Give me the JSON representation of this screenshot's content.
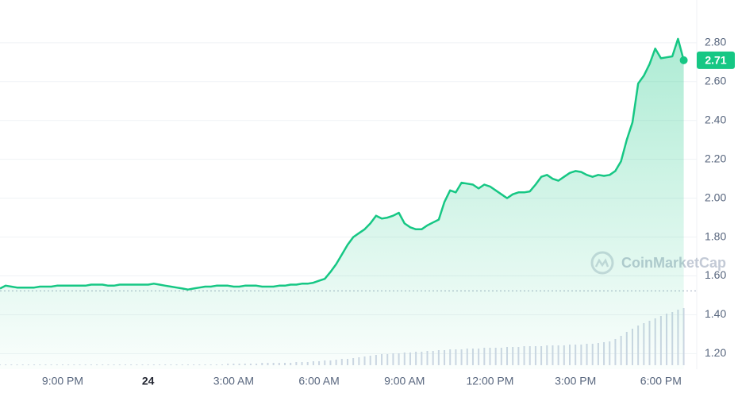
{
  "chart_data": {
    "type": "line",
    "watermark": "CoinMarketCap",
    "series": [
      {
        "name": "Price",
        "color": "#16c784",
        "values": [
          1.535,
          1.55,
          1.545,
          1.54,
          1.54,
          1.54,
          1.54,
          1.545,
          1.545,
          1.545,
          1.55,
          1.55,
          1.55,
          1.55,
          1.55,
          1.55,
          1.555,
          1.555,
          1.555,
          1.55,
          1.55,
          1.555,
          1.555,
          1.555,
          1.555,
          1.555,
          1.555,
          1.56,
          1.555,
          1.55,
          1.545,
          1.54,
          1.535,
          1.53,
          1.535,
          1.54,
          1.545,
          1.545,
          1.55,
          1.55,
          1.55,
          1.545,
          1.545,
          1.55,
          1.55,
          1.55,
          1.545,
          1.545,
          1.545,
          1.55,
          1.55,
          1.555,
          1.555,
          1.56,
          1.56,
          1.565,
          1.575,
          1.585,
          1.62,
          1.66,
          1.71,
          1.76,
          1.8,
          1.82,
          1.84,
          1.87,
          1.91,
          1.895,
          1.9,
          1.91,
          1.925,
          1.87,
          1.85,
          1.84,
          1.84,
          1.86,
          1.875,
          1.89,
          1.98,
          2.04,
          2.03,
          2.08,
          2.075,
          2.07,
          2.05,
          2.07,
          2.06,
          2.04,
          2.02,
          2.0,
          2.02,
          2.03,
          2.03,
          2.035,
          2.07,
          2.11,
          2.12,
          2.1,
          2.09,
          2.11,
          2.13,
          2.14,
          2.135,
          2.12,
          2.11,
          2.12,
          2.115,
          2.12,
          2.14,
          2.19,
          2.3,
          2.39,
          2.59,
          2.63,
          2.69,
          2.77,
          2.72,
          2.725,
          2.73,
          2.82,
          2.71
        ]
      }
    ],
    "volume": {
      "color": "#cfd6e4",
      "values": [
        1,
        1,
        1,
        1,
        1,
        1,
        1,
        1,
        1,
        1,
        1,
        1,
        1,
        1,
        1,
        1,
        1,
        1,
        1,
        1,
        1,
        1,
        1,
        1,
        1,
        1,
        1,
        1,
        1,
        1,
        1,
        1,
        1,
        1,
        1,
        1,
        1,
        1,
        1,
        1,
        2,
        2,
        2,
        2,
        2,
        2,
        3,
        3,
        3,
        3,
        3,
        3,
        4,
        4,
        4,
        5,
        5,
        6,
        6,
        7,
        8,
        8,
        9,
        10,
        11,
        12,
        13,
        14,
        14,
        15,
        15,
        16,
        16,
        17,
        17,
        18,
        18,
        19,
        19,
        20,
        20,
        20,
        21,
        21,
        21,
        22,
        22,
        22,
        22,
        23,
        23,
        23,
        24,
        24,
        24,
        24,
        25,
        25,
        25,
        25,
        26,
        26,
        26,
        27,
        27,
        28,
        29,
        30,
        33,
        37,
        42,
        46,
        50,
        53,
        56,
        59,
        62,
        65,
        67,
        70,
        72
      ]
    },
    "baseline": 1.523,
    "current_price": {
      "value": 2.71,
      "label": "2.71"
    },
    "xlim": [
      0,
      120
    ],
    "xticks": [
      {
        "value": 11,
        "label": "9:00 PM"
      },
      {
        "value": 26,
        "label": "24"
      },
      {
        "value": 41,
        "label": "3:00 AM"
      },
      {
        "value": 56,
        "label": "6:00 AM"
      },
      {
        "value": 71,
        "label": "9:00 AM"
      },
      {
        "value": 86,
        "label": "12:00 PM"
      },
      {
        "value": 101,
        "label": "3:00 PM"
      },
      {
        "value": 116,
        "label": "6:00 PM"
      }
    ],
    "ylim": [
      1.12,
      3.02
    ],
    "yticks": [
      {
        "value": 1.2,
        "label": "1.20"
      },
      {
        "value": 1.4,
        "label": "1.40"
      },
      {
        "value": 1.6,
        "label": "1.60"
      },
      {
        "value": 1.8,
        "label": "1.80"
      },
      {
        "value": 2.0,
        "label": "2.00"
      },
      {
        "value": 2.2,
        "label": "2.20"
      },
      {
        "value": 2.4,
        "label": "2.40"
      },
      {
        "value": 2.6,
        "label": "2.60"
      },
      {
        "value": 2.8,
        "label": "2.80"
      }
    ],
    "grid": true
  }
}
